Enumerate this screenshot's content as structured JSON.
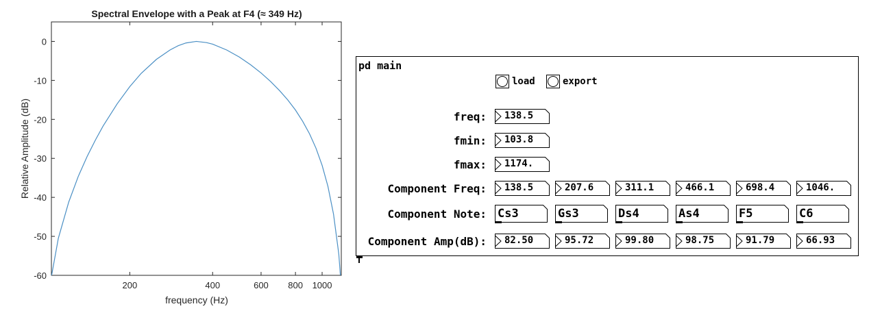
{
  "chart_data": {
    "type": "line",
    "title": "Spectral Envelope with a Peak at F4 (≈ 349 Hz)",
    "xlabel": "frequency (Hz)",
    "ylabel": "Relative Amplitude (dB)",
    "x_scale": "log",
    "xlim": [
      103.8,
      1174
    ],
    "ylim": [
      -60,
      5
    ],
    "x_ticks": [
      200,
      400,
      600,
      800,
      1000
    ],
    "x_tick_labels": [
      "200",
      "400",
      "600",
      "800",
      "1000"
    ],
    "y_ticks": [
      0,
      -10,
      -20,
      -30,
      -40,
      -50,
      -60
    ],
    "y_tick_labels": [
      "0",
      "-10",
      "-20",
      "-30",
      "-40",
      "-50",
      "-60"
    ],
    "grid": false,
    "line_color": "#4a8fc4",
    "series": [
      {
        "x": [
          104,
          110,
          120,
          130,
          140,
          150,
          160,
          180,
          200,
          220,
          250,
          280,
          300,
          320,
          349,
          380,
          400,
          450,
          500,
          550,
          600,
          650,
          700,
          750,
          800,
          850,
          900,
          950,
          1000,
          1050,
          1100,
          1150,
          1165
        ],
        "y": [
          -60,
          -50.5,
          -41.2,
          -34.6,
          -29.5,
          -25.3,
          -21.7,
          -16.0,
          -11.6,
          -8.2,
          -4.6,
          -2.2,
          -1.1,
          -0.4,
          0,
          -0.3,
          -0.7,
          -2.2,
          -4.0,
          -6.0,
          -8.1,
          -10.3,
          -12.6,
          -15.0,
          -17.6,
          -20.5,
          -23.7,
          -27.4,
          -31.8,
          -37.2,
          -44.3,
          -54.6,
          -60
        ]
      }
    ]
  },
  "pd": {
    "title": "pd main",
    "load_label": "load",
    "export_label": "export",
    "freq_label": "freq:",
    "freq_value": "138.5",
    "fmin_label": "fmin:",
    "fmin_value": "103.8",
    "fmax_label": "fmax:",
    "fmax_value": "1174.",
    "component_freq_label": "Component Freq:",
    "component_freqs": [
      "138.5",
      "207.6",
      "311.1",
      "466.1",
      "698.4",
      "1046."
    ],
    "component_note_label": "Component Note:",
    "component_notes": [
      "Cs3",
      "Gs3",
      "Ds4",
      "As4",
      "F5",
      "C6"
    ],
    "component_amp_label": "Component Amp(dB):",
    "component_amps": [
      "82.50",
      "95.72",
      "99.80",
      "98.75",
      "91.79",
      "66.93"
    ]
  }
}
